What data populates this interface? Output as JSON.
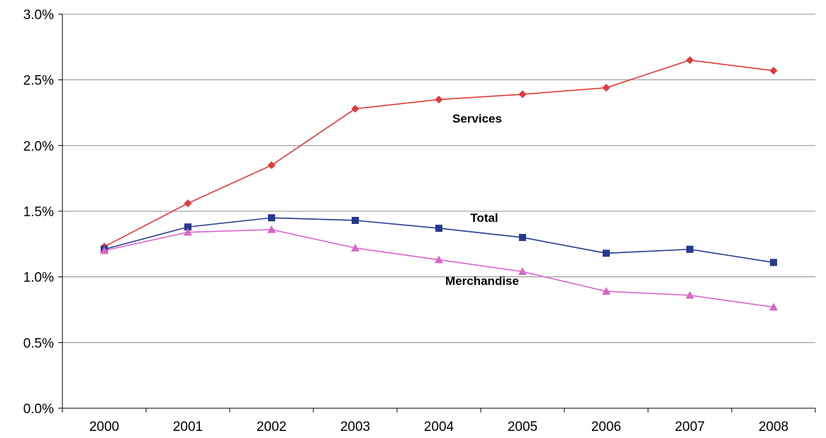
{
  "chart_data": {
    "type": "line",
    "title": "",
    "xlabel": "",
    "ylabel": "",
    "categories": [
      "2000",
      "2001",
      "2002",
      "2003",
      "2004",
      "2005",
      "2006",
      "2007",
      "2008"
    ],
    "ylim": [
      0,
      3.0
    ],
    "y_ticks": [
      "0.0%",
      "0.5%",
      "1.0%",
      "1.5%",
      "2.0%",
      "2.5%",
      "3.0%"
    ],
    "grid": true,
    "legend": "none",
    "series": [
      {
        "name": "Services",
        "color": "#e03a3a",
        "marker": "diamond",
        "values": [
          1.23,
          1.56,
          1.85,
          2.28,
          2.35,
          2.39,
          2.44,
          2.65,
          2.57
        ]
      },
      {
        "name": "Total",
        "color": "#25398f",
        "marker": "square",
        "values": [
          1.21,
          1.38,
          1.45,
          1.43,
          1.37,
          1.3,
          1.18,
          1.21,
          1.11
        ]
      },
      {
        "name": "Merchandise",
        "color": "#d965c9",
        "marker": "triangle",
        "values": [
          1.2,
          1.34,
          1.36,
          1.22,
          1.13,
          1.04,
          0.89,
          0.86,
          0.77
        ]
      }
    ]
  }
}
